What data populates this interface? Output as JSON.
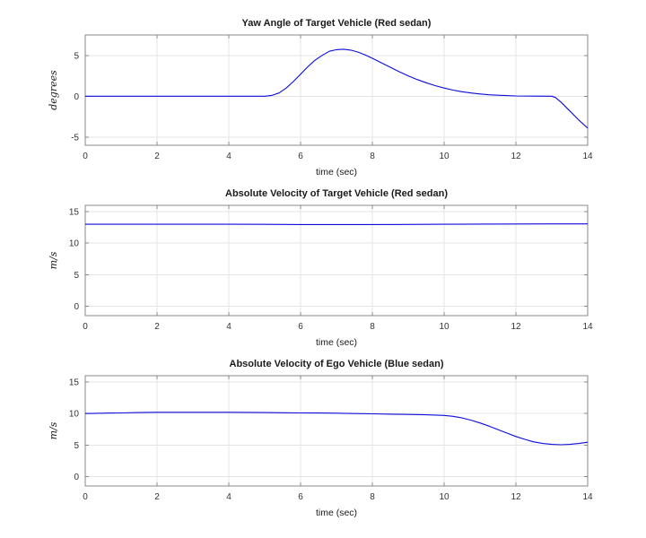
{
  "figure": {
    "background": "#ffffff",
    "line_color": "#0b0bdf",
    "grid_color": "#e4e4e4",
    "axis_color": "#888888",
    "tick_color": "#333333",
    "text_color": "#1a1a1a"
  },
  "chart_data": [
    {
      "type": "line",
      "title": "Yaw Angle of Target Vehicle (Red sedan)",
      "xlabel": "time (sec)",
      "ylabel": "degrees",
      "xlim": [
        0,
        14
      ],
      "ylim": [
        -6,
        7.5
      ],
      "xticks": [
        0,
        2,
        4,
        6,
        8,
        10,
        12,
        14
      ],
      "yticks": [
        -5,
        0,
        5
      ],
      "grid": true,
      "legend": null,
      "series": [
        {
          "name": "yaw-angle",
          "x": [
            0,
            0.5,
            1,
            1.5,
            2,
            2.5,
            3,
            3.5,
            4,
            4.5,
            5,
            5.2,
            5.4,
            5.6,
            5.8,
            6,
            6.2,
            6.4,
            6.6,
            6.8,
            7,
            7.2,
            7.4,
            7.6,
            7.8,
            8,
            8.25,
            8.5,
            8.75,
            9,
            9.25,
            9.5,
            9.75,
            10,
            10.25,
            10.5,
            10.75,
            11,
            11.25,
            11.5,
            12,
            12.5,
            13,
            13.1,
            13.25,
            13.5,
            13.75,
            14
          ],
          "y": [
            0,
            0,
            0,
            0,
            0,
            0,
            0,
            0,
            0,
            0,
            0,
            0.1,
            0.4,
            1.0,
            1.8,
            2.7,
            3.6,
            4.4,
            5.0,
            5.5,
            5.7,
            5.75,
            5.65,
            5.4,
            5.05,
            4.65,
            4.1,
            3.55,
            3.0,
            2.5,
            2.05,
            1.65,
            1.3,
            1.0,
            0.75,
            0.55,
            0.4,
            0.28,
            0.18,
            0.12,
            0.04,
            0.01,
            0,
            -0.15,
            -0.7,
            -1.8,
            -2.9,
            -3.9
          ]
        }
      ]
    },
    {
      "type": "line",
      "title": "Absolute Velocity of Target Vehicle (Red sedan)",
      "xlabel": "time (sec)",
      "ylabel": "m/s",
      "xlim": [
        0,
        14
      ],
      "ylim": [
        -1.5,
        16
      ],
      "xticks": [
        0,
        2,
        4,
        6,
        8,
        10,
        12,
        14
      ],
      "yticks": [
        0,
        5,
        10,
        15
      ],
      "grid": true,
      "legend": null,
      "series": [
        {
          "name": "target-velocity",
          "x": [
            0,
            1,
            2,
            3,
            4,
            5,
            6,
            7,
            8,
            9,
            10,
            11,
            12,
            13,
            14
          ],
          "y": [
            13,
            13,
            13,
            13,
            13,
            12.98,
            12.96,
            12.95,
            12.95,
            12.97,
            13,
            13.02,
            13.04,
            13.05,
            13.05
          ]
        }
      ]
    },
    {
      "type": "line",
      "title": "Absolute Velocity of Ego Vehicle (Blue sedan)",
      "xlabel": "time (sec)",
      "ylabel": "m/s",
      "xlim": [
        0,
        14
      ],
      "ylim": [
        -1.5,
        16
      ],
      "xticks": [
        0,
        2,
        4,
        6,
        8,
        10,
        12,
        14
      ],
      "yticks": [
        0,
        5,
        10,
        15
      ],
      "grid": true,
      "legend": null,
      "series": [
        {
          "name": "ego-velocity",
          "x": [
            0,
            0.5,
            1,
            1.5,
            2,
            2.5,
            3,
            3.5,
            4,
            4.5,
            5,
            5.5,
            6,
            6.5,
            7,
            7.5,
            8,
            8.5,
            9,
            9.5,
            10,
            10.25,
            10.5,
            10.75,
            11,
            11.25,
            11.5,
            11.75,
            12,
            12.25,
            12.5,
            12.75,
            13,
            13.25,
            13.5,
            13.75,
            14
          ],
          "y": [
            10,
            10.05,
            10.1,
            10.15,
            10.2,
            10.2,
            10.2,
            10.2,
            10.2,
            10.18,
            10.15,
            10.12,
            10.1,
            10.08,
            10.05,
            10.0,
            9.95,
            9.9,
            9.85,
            9.8,
            9.7,
            9.55,
            9.3,
            8.95,
            8.5,
            8.0,
            7.45,
            6.9,
            6.35,
            5.9,
            5.5,
            5.25,
            5.1,
            5.05,
            5.1,
            5.25,
            5.45
          ]
        }
      ]
    }
  ]
}
